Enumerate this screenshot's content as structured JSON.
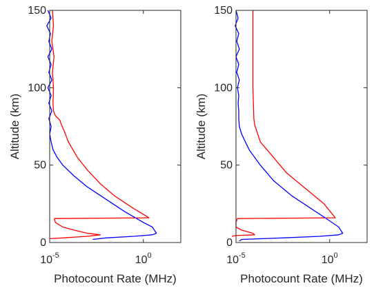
{
  "chart_data": [
    {
      "type": "line",
      "xlabel": "Photocount Rate (MHz)",
      "ylabel": "Altitude (km)",
      "xscale": "log",
      "xlim": [
        1e-05,
        100
      ],
      "ylim": [
        0,
        150
      ],
      "xticks": [
        {
          "value": 1e-05,
          "base": "10",
          "exp": "-5"
        },
        {
          "value": 1,
          "base": "10",
          "exp": "0"
        }
      ],
      "yticks": [
        0,
        50,
        100,
        150
      ],
      "grid": false,
      "series": [
        {
          "color": "#ff0000",
          "points": [
            [
              1.4e-05,
              150
            ],
            [
              1.6e-05,
              140
            ],
            [
              1.3e-05,
              130
            ],
            [
              1.7e-05,
              120
            ],
            [
              1.4e-05,
              110
            ],
            [
              1.6e-05,
              100
            ],
            [
              1.5e-05,
              90
            ],
            [
              1.6e-05,
              85
            ],
            [
              2e-05,
              82
            ],
            [
              3.5e-05,
              79
            ],
            [
              4e-05,
              77
            ],
            [
              5e-05,
              74
            ],
            [
              6e-05,
              72
            ],
            [
              0.0001,
              65
            ],
            [
              0.0003,
              55
            ],
            [
              0.001,
              47
            ],
            [
              0.005,
              38
            ],
            [
              0.03,
              30
            ],
            [
              0.3,
              22
            ],
            [
              2,
              16
            ],
            [
              1.8e-05,
              15.5
            ],
            [
              2e-05,
              13
            ],
            [
              5e-05,
              10
            ],
            [
              0.0002,
              8
            ],
            [
              0.001,
              6
            ],
            [
              0.005,
              5
            ],
            [
              0.001,
              4
            ],
            [
              5e-05,
              3
            ],
            [
              1e-05,
              2.5
            ]
          ]
        },
        {
          "color": "#0000ff",
          "points": [
            [
              8e-06,
              150
            ],
            [
              1.2e-05,
              145
            ],
            [
              7e-06,
              140
            ],
            [
              1.1e-05,
              135
            ],
            [
              9e-06,
              130
            ],
            [
              1.3e-05,
              125
            ],
            [
              8e-06,
              120
            ],
            [
              1.2e-05,
              115
            ],
            [
              9e-06,
              110
            ],
            [
              1.3e-05,
              105
            ],
            [
              8e-06,
              100
            ],
            [
              1.2e-05,
              95
            ],
            [
              9e-06,
              90
            ],
            [
              1.3e-05,
              85
            ],
            [
              9e-06,
              80
            ],
            [
              1.2e-05,
              75
            ],
            [
              1e-05,
              70
            ],
            [
              1.2e-05,
              65
            ],
            [
              1.5e-05,
              60
            ],
            [
              2.5e-05,
              55
            ],
            [
              5e-05,
              50
            ],
            [
              0.0002,
              43
            ],
            [
              0.001,
              36
            ],
            [
              0.01,
              28
            ],
            [
              0.1,
              20
            ],
            [
              1,
              13
            ],
            [
              3,
              10
            ],
            [
              5,
              6
            ],
            [
              3,
              5
            ],
            [
              0.3,
              4
            ],
            [
              0.01,
              3
            ],
            [
              0.002,
              2
            ]
          ]
        }
      ]
    },
    {
      "type": "line",
      "xlabel": "Photocount Rate (MHz)",
      "ylabel": "Altitude (km)",
      "xscale": "log",
      "xlim": [
        1e-05,
        100
      ],
      "ylim": [
        0,
        150
      ],
      "xticks": [
        {
          "value": 1e-05,
          "base": "10",
          "exp": "-5"
        },
        {
          "value": 1,
          "base": "10",
          "exp": "0"
        }
      ],
      "yticks": [
        0,
        50,
        100,
        150
      ],
      "grid": false,
      "series": [
        {
          "color": "#ff0000",
          "points": [
            [
              8e-05,
              150
            ],
            [
              8e-05,
              120
            ],
            [
              8e-05,
              100
            ],
            [
              9e-05,
              80
            ],
            [
              0.0001,
              76
            ],
            [
              0.0002,
              65
            ],
            [
              0.001,
              55
            ],
            [
              0.005,
              45
            ],
            [
              0.05,
              35
            ],
            [
              0.5,
              25
            ],
            [
              2,
              16
            ],
            [
              1.2e-05,
              15.5
            ],
            [
              1e-05,
              13
            ],
            [
              1e-05,
              10
            ],
            [
              2e-05,
              8
            ],
            [
              8e-05,
              6
            ],
            [
              0.0001,
              5
            ],
            [
              1e-05,
              4.5
            ],
            [
              6e-06,
              4
            ]
          ]
        },
        {
          "color": "#0000ff",
          "points": [
            [
              1e-05,
              150
            ],
            [
              1.3e-05,
              145
            ],
            [
              9e-06,
              140
            ],
            [
              1.4e-05,
              135
            ],
            [
              1.1e-05,
              130
            ],
            [
              1.5e-05,
              125
            ],
            [
              1e-05,
              120
            ],
            [
              1.4e-05,
              115
            ],
            [
              1.1e-05,
              110
            ],
            [
              1.5e-05,
              105
            ],
            [
              1.2e-05,
              100
            ],
            [
              1.4e-05,
              95
            ],
            [
              1.3e-05,
              90
            ],
            [
              1.4e-05,
              85
            ],
            [
              1.4e-05,
              80
            ],
            [
              1.5e-05,
              75
            ],
            [
              2e-05,
              70
            ],
            [
              5e-05,
              60
            ],
            [
              0.0002,
              50
            ],
            [
              0.001,
              40
            ],
            [
              0.01,
              30
            ],
            [
              0.1,
              22
            ],
            [
              1,
              14
            ],
            [
              3,
              10
            ],
            [
              5,
              6
            ],
            [
              3,
              5
            ],
            [
              0.3,
              4
            ],
            [
              0.003,
              3
            ],
            [
              2e-05,
              2
            ],
            [
              1.5e-05,
              1
            ]
          ]
        }
      ]
    }
  ]
}
